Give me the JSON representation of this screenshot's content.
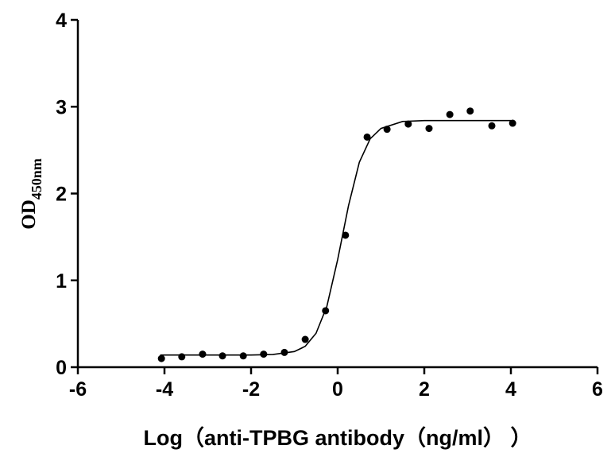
{
  "chart_data": {
    "type": "scatter",
    "x_label": "Log（anti-TPBG antibody（ng/ml） ）",
    "y_label": {
      "text": "OD",
      "subscript": "450nm"
    },
    "xlim": [
      -6,
      6
    ],
    "xticks": [
      -6,
      -4,
      -2,
      0,
      2,
      4,
      6
    ],
    "ylim": [
      0,
      4
    ],
    "yticks": [
      0,
      1,
      2,
      3,
      4
    ],
    "series": [
      {
        "color": "#000000",
        "x": [
          -4.07,
          -3.6,
          -3.12,
          -2.66,
          -2.18,
          -1.71,
          -1.23,
          -0.75,
          -0.28,
          0.18,
          0.68,
          1.14,
          1.63,
          2.11,
          2.59,
          3.06,
          3.56,
          4.04
        ],
        "values": [
          0.1,
          0.12,
          0.15,
          0.13,
          0.13,
          0.15,
          0.17,
          0.32,
          0.65,
          1.52,
          2.65,
          2.74,
          2.8,
          2.75,
          2.91,
          2.95,
          2.78,
          2.81
        ]
      },
      {
        "type": "line",
        "color": "#000000",
        "x": [
          -4.1,
          -3,
          -2,
          -1.5,
          -1,
          -0.75,
          -0.5,
          -0.25,
          0,
          0.25,
          0.5,
          0.75,
          1,
          1.5,
          2,
          3,
          4
        ],
        "values": [
          0.14,
          0.14,
          0.14,
          0.146,
          0.18,
          0.24,
          0.39,
          0.7,
          1.24,
          1.86,
          2.36,
          2.63,
          2.75,
          2.83,
          2.84,
          2.84,
          2.84
        ]
      }
    ]
  }
}
